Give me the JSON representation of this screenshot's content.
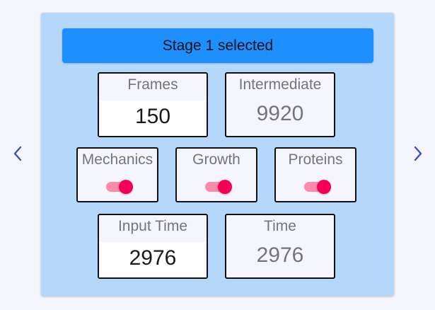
{
  "colors": {
    "panel_bg": "#b5d7fa",
    "banner_bg": "#1e8fff",
    "switch_on": "#f50057",
    "arrow": "#3f51b5"
  },
  "banner": {
    "label": "Stage 1 selected"
  },
  "fields": {
    "frames": {
      "label": "Frames",
      "value": "150"
    },
    "intermediate": {
      "label": "Intermediate",
      "value": "9920"
    },
    "input_time": {
      "label": "Input Time",
      "value": "2976"
    },
    "time": {
      "label": "Time",
      "value": "2976"
    }
  },
  "toggles": {
    "mechanics": {
      "label": "Mechanics",
      "checked": true
    },
    "growth": {
      "label": "Growth",
      "checked": true
    },
    "proteins": {
      "label": "Proteins",
      "checked": true
    }
  },
  "nav": {
    "prev_icon": "chevron-left-icon",
    "next_icon": "chevron-right-icon"
  }
}
